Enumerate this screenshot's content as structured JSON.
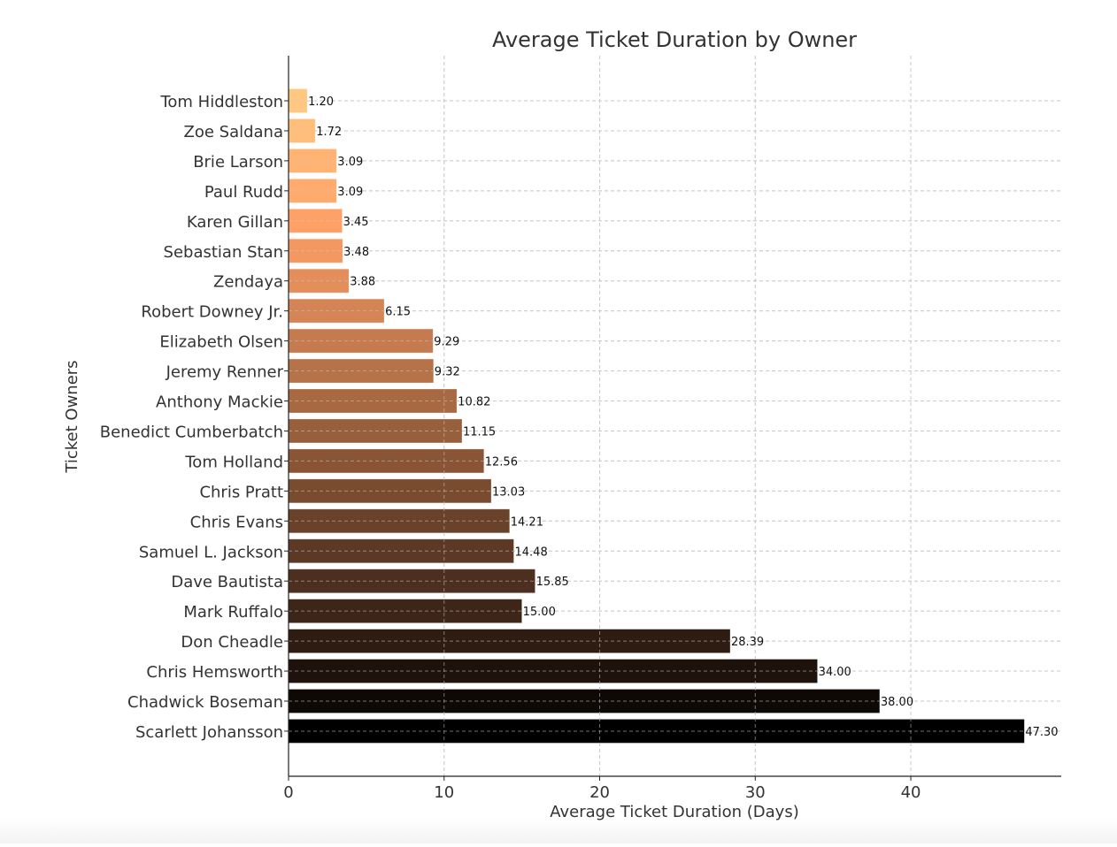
{
  "chart_data": {
    "type": "bar",
    "orientation": "horizontal",
    "title": "Average Ticket Duration by Owner",
    "xlabel": "Average Ticket Duration (Days)",
    "ylabel": "Ticket Owners",
    "xlim": [
      0,
      49.67
    ],
    "xticks": [
      0,
      10,
      20,
      30,
      40
    ],
    "grid": true,
    "colormap": "copper_r",
    "colors": {
      "start": "#ffc77f",
      "end": "#000000",
      "text": "#333333",
      "axis": "#222222",
      "grid": "#cccccc"
    },
    "categories": [
      "Tom Hiddleston",
      "Zoe Saldana",
      "Brie Larson",
      "Paul Rudd",
      "Karen Gillan",
      "Sebastian Stan",
      "Zendaya",
      "Robert Downey Jr.",
      "Elizabeth Olsen",
      "Jeremy Renner",
      "Anthony Mackie",
      "Benedict Cumberbatch",
      "Tom Holland",
      "Chris Pratt",
      "Chris Evans",
      "Samuel L. Jackson",
      "Dave Bautista",
      "Mark Ruffalo",
      "Don Cheadle",
      "Chris Hemsworth",
      "Chadwick Boseman",
      "Scarlett Johansson"
    ],
    "values": [
      1.2,
      1.72,
      3.09,
      3.09,
      3.45,
      3.48,
      3.88,
      6.15,
      9.29,
      9.32,
      10.82,
      11.15,
      12.56,
      13.03,
      14.21,
      14.48,
      15.85,
      15.0,
      28.39,
      34.0,
      38.0,
      47.3
    ],
    "value_labels": [
      "1.20",
      "1.72",
      "3.09",
      "3.09",
      "3.45",
      "3.48",
      "3.88",
      "6.15",
      "9.29",
      "9.32",
      "10.82",
      "11.15",
      "12.56",
      "13.03",
      "14.21",
      "14.48",
      "15.85",
      "15.00",
      "28.39",
      "34.00",
      "38.00",
      "47.30"
    ]
  }
}
